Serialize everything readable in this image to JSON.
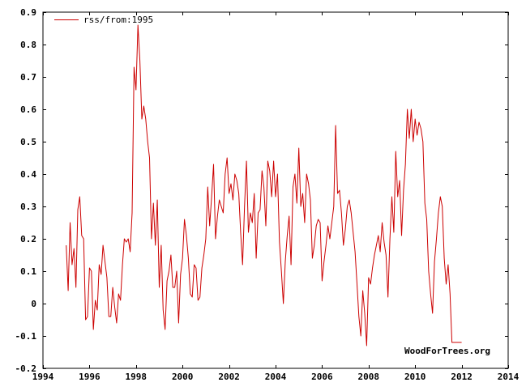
{
  "chart_data": {
    "type": "line",
    "title": "",
    "xlabel": "",
    "ylabel": "",
    "xlim": [
      1994,
      2014
    ],
    "ylim": [
      -0.2,
      0.9
    ],
    "x_ticks": [
      1994,
      1996,
      1998,
      2000,
      2002,
      2004,
      2006,
      2008,
      2010,
      2012,
      2014
    ],
    "y_ticks": [
      -0.2,
      -0.1,
      0,
      0.1,
      0.2,
      0.3,
      0.4,
      0.5,
      0.6,
      0.7,
      0.8,
      0.9
    ],
    "grid": false,
    "legend_position": "top-left",
    "series": [
      {
        "name": "rss/from:1995",
        "color": "#cc0000",
        "x": [
          1995.0,
          1995.083,
          1995.167,
          1995.25,
          1995.333,
          1995.417,
          1995.5,
          1995.583,
          1995.667,
          1995.75,
          1995.833,
          1995.917,
          1996.0,
          1996.083,
          1996.167,
          1996.25,
          1996.333,
          1996.417,
          1996.5,
          1996.583,
          1996.667,
          1996.75,
          1996.833,
          1996.917,
          1997.0,
          1997.083,
          1997.167,
          1997.25,
          1997.333,
          1997.417,
          1997.5,
          1997.583,
          1997.667,
          1997.75,
          1997.833,
          1997.917,
          1998.0,
          1998.083,
          1998.167,
          1998.25,
          1998.333,
          1998.417,
          1998.5,
          1998.583,
          1998.667,
          1998.75,
          1998.833,
          1998.917,
          1999.0,
          1999.083,
          1999.167,
          1999.25,
          1999.333,
          1999.417,
          1999.5,
          1999.583,
          1999.667,
          1999.75,
          1999.833,
          1999.917,
          2000.0,
          2000.083,
          2000.167,
          2000.25,
          2000.333,
          2000.417,
          2000.5,
          2000.583,
          2000.667,
          2000.75,
          2000.833,
          2000.917,
          2001.0,
          2001.083,
          2001.167,
          2001.25,
          2001.333,
          2001.417,
          2001.5,
          2001.583,
          2001.667,
          2001.75,
          2001.833,
          2001.917,
          2002.0,
          2002.083,
          2002.167,
          2002.25,
          2002.333,
          2002.417,
          2002.5,
          2002.583,
          2002.667,
          2002.75,
          2002.833,
          2002.917,
          2003.0,
          2003.083,
          2003.167,
          2003.25,
          2003.333,
          2003.417,
          2003.5,
          2003.583,
          2003.667,
          2003.75,
          2003.833,
          2003.917,
          2004.0,
          2004.083,
          2004.167,
          2004.25,
          2004.333,
          2004.417,
          2004.5,
          2004.583,
          2004.667,
          2004.75,
          2004.833,
          2004.917,
          2005.0,
          2005.083,
          2005.167,
          2005.25,
          2005.333,
          2005.417,
          2005.5,
          2005.583,
          2005.667,
          2005.75,
          2005.833,
          2005.917,
          2006.0,
          2006.083,
          2006.167,
          2006.25,
          2006.333,
          2006.417,
          2006.5,
          2006.583,
          2006.667,
          2006.75,
          2006.833,
          2006.917,
          2007.0,
          2007.083,
          2007.167,
          2007.25,
          2007.333,
          2007.417,
          2007.5,
          2007.583,
          2007.667,
          2007.75,
          2007.833,
          2007.917,
          2008.0,
          2008.083,
          2008.167,
          2008.25,
          2008.333,
          2008.417,
          2008.5,
          2008.583,
          2008.667,
          2008.75,
          2008.833,
          2008.917,
          2009.0,
          2009.083,
          2009.167,
          2009.25,
          2009.333,
          2009.417,
          2009.5,
          2009.583,
          2009.667,
          2009.75,
          2009.833,
          2009.917,
          2010.0,
          2010.083,
          2010.167,
          2010.25,
          2010.333,
          2010.417,
          2010.5,
          2010.583,
          2010.667,
          2010.75,
          2010.833,
          2010.917,
          2011.0,
          2011.083,
          2011.167,
          2011.25,
          2011.333,
          2011.417,
          2011.5,
          2011.583,
          2011.667,
          2011.75,
          2011.833,
          2011.917,
          2012.0
        ],
        "values": [
          0.18,
          0.04,
          0.25,
          0.12,
          0.17,
          0.05,
          0.29,
          0.33,
          0.21,
          0.2,
          -0.05,
          -0.04,
          0.11,
          0.1,
          -0.08,
          0.01,
          -0.02,
          0.12,
          0.09,
          0.18,
          0.13,
          0.08,
          -0.04,
          -0.04,
          0.05,
          -0.01,
          -0.06,
          0.03,
          0.01,
          0.12,
          0.2,
          0.19,
          0.2,
          0.16,
          0.28,
          0.73,
          0.66,
          0.86,
          0.75,
          0.57,
          0.61,
          0.57,
          0.5,
          0.45,
          0.2,
          0.31,
          0.18,
          0.32,
          0.05,
          0.18,
          -0.02,
          -0.08,
          0.07,
          0.1,
          0.15,
          0.05,
          0.05,
          0.1,
          -0.06,
          0.09,
          0.14,
          0.26,
          0.21,
          0.14,
          0.03,
          0.02,
          0.12,
          0.11,
          0.01,
          0.02,
          0.11,
          0.15,
          0.2,
          0.36,
          0.24,
          0.33,
          0.43,
          0.2,
          0.27,
          0.32,
          0.3,
          0.28,
          0.4,
          0.45,
          0.34,
          0.37,
          0.32,
          0.4,
          0.38,
          0.34,
          0.22,
          0.12,
          0.3,
          0.44,
          0.22,
          0.28,
          0.25,
          0.34,
          0.14,
          0.28,
          0.29,
          0.41,
          0.36,
          0.24,
          0.44,
          0.41,
          0.33,
          0.44,
          0.33,
          0.4,
          0.19,
          0.1,
          0.0,
          0.13,
          0.21,
          0.27,
          0.12,
          0.36,
          0.4,
          0.31,
          0.48,
          0.3,
          0.34,
          0.25,
          0.4,
          0.37,
          0.32,
          0.14,
          0.18,
          0.24,
          0.26,
          0.25,
          0.07,
          0.13,
          0.18,
          0.24,
          0.2,
          0.25,
          0.3,
          0.55,
          0.34,
          0.35,
          0.28,
          0.18,
          0.23,
          0.3,
          0.32,
          0.28,
          0.22,
          0.16,
          0.06,
          -0.04,
          -0.1,
          0.04,
          -0.03,
          -0.13,
          0.08,
          0.06,
          0.11,
          0.15,
          0.18,
          0.21,
          0.16,
          0.25,
          0.19,
          0.15,
          0.02,
          0.2,
          0.33,
          0.22,
          0.47,
          0.33,
          0.38,
          0.21,
          0.35,
          0.43,
          0.6,
          0.51,
          0.6,
          0.5,
          0.57,
          0.52,
          0.56,
          0.54,
          0.5,
          0.31,
          0.26,
          0.1,
          0.03,
          -0.03,
          0.13,
          0.2,
          0.28,
          0.33,
          0.3,
          0.14,
          0.06,
          0.12,
          0.03,
          -0.12,
          -0.12,
          -0.12,
          -0.12,
          -0.12,
          -0.12
        ]
      }
    ]
  },
  "credit_text": "WoodForTrees.org"
}
